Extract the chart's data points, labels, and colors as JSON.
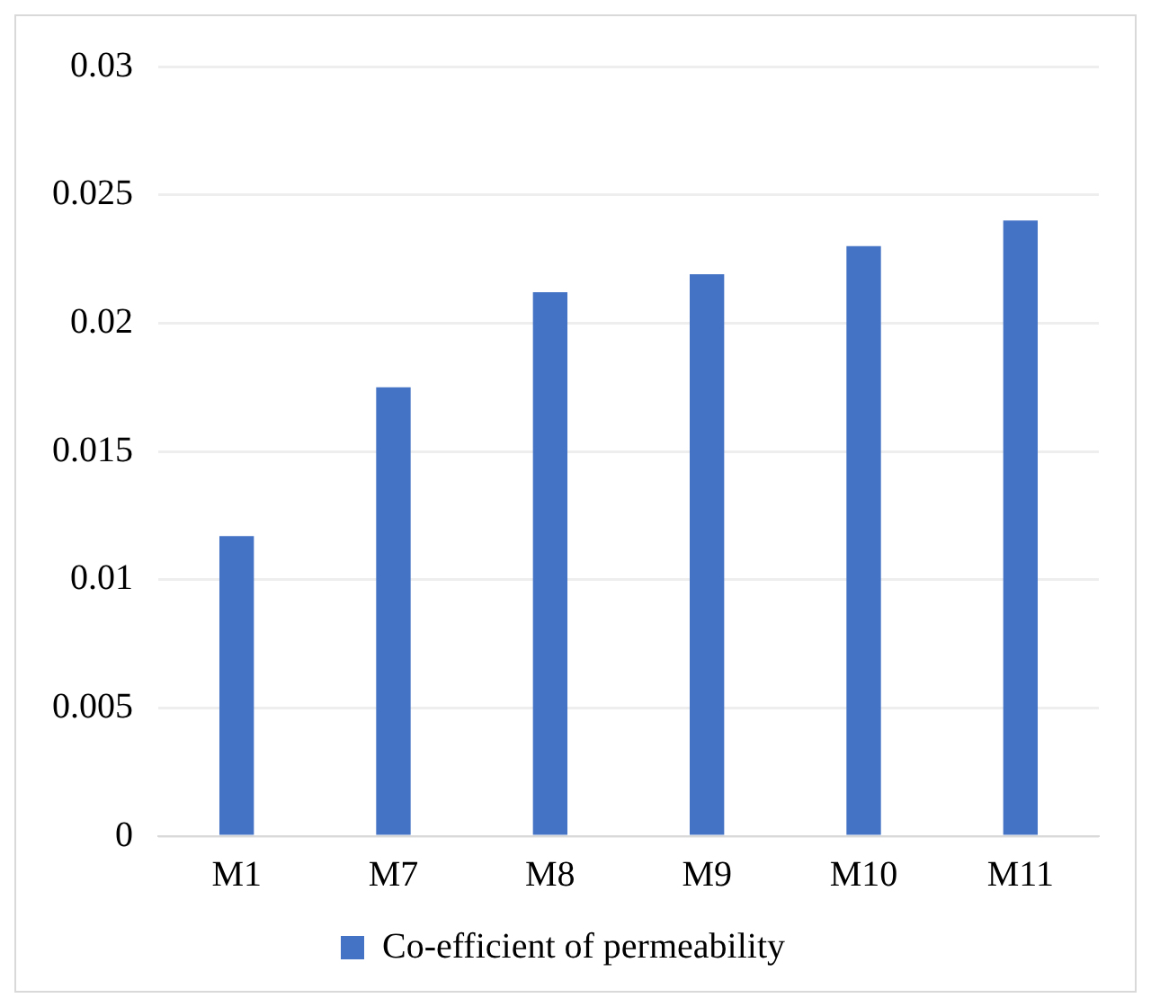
{
  "chart_data": {
    "type": "bar",
    "categories": [
      "M1",
      "M7",
      "M8",
      "M9",
      "M10",
      "M11"
    ],
    "series": [
      {
        "name": "Co-efficient of permeability",
        "color": "#4472c4",
        "values": [
          0.0117,
          0.0175,
          0.0212,
          0.0219,
          0.023,
          0.024
        ]
      }
    ],
    "ylim": [
      0,
      0.03
    ],
    "yticks": [
      0,
      0.005,
      0.01,
      0.015,
      0.02,
      0.025,
      0.03
    ],
    "grid": "y",
    "legend": "bottom"
  }
}
